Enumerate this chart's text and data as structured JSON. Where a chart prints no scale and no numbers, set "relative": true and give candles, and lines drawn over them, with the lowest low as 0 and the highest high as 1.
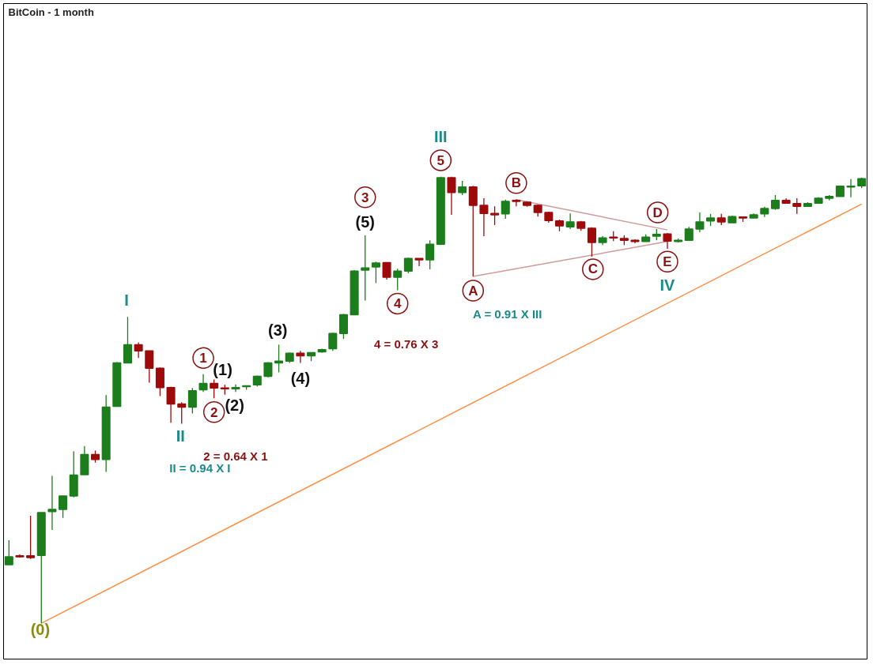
{
  "chart_data": {
    "type": "candlestick",
    "title": "BitCoin - 1 month",
    "relative": true,
    "tick_labels": false,
    "grid": false,
    "categories": [
      null,
      null,
      null,
      null,
      null,
      null,
      null,
      null,
      null,
      null,
      null,
      null,
      null,
      null,
      null,
      null,
      null,
      null,
      null,
      null,
      null,
      null,
      null,
      null,
      null,
      null,
      null,
      null,
      null,
      null,
      null,
      null,
      null,
      null,
      null,
      null,
      null,
      null,
      null,
      null,
      null,
      null,
      null,
      null,
      null,
      null,
      null,
      null,
      null,
      null,
      null,
      null,
      null,
      null,
      null,
      null,
      null,
      null,
      null,
      null,
      null,
      null,
      null,
      null,
      null,
      null,
      null,
      null,
      null,
      null,
      null,
      null,
      null,
      null,
      null,
      null,
      null,
      null,
      null,
      null
    ],
    "ohlc": [
      [
        0.131,
        0.186,
        0.131,
        0.149
      ],
      [
        0.151,
        0.154,
        0.147,
        0.149
      ],
      [
        0.151,
        0.241,
        0.144,
        0.147
      ],
      [
        0.152,
        0.248,
        0,
        0.248
      ],
      [
        0.25,
        0.33,
        0.209,
        0.255
      ],
      [
        0.255,
        0.285,
        0.236,
        0.285
      ],
      [
        0.285,
        0.385,
        0.282,
        0.332
      ],
      [
        0.333,
        0.397,
        0.333,
        0.378
      ],
      [
        0.378,
        0.387,
        0.36,
        0.367
      ],
      [
        0.367,
        0.511,
        0.339,
        0.484
      ],
      [
        0.486,
        0.585,
        0.486,
        0.583
      ],
      [
        0.583,
        0.686,
        0.583,
        0.624
      ],
      [
        0.624,
        0.629,
        0.594,
        0.61
      ],
      [
        0.61,
        0.61,
        0.539,
        0.571
      ],
      [
        0.571,
        0.573,
        0.509,
        0.528
      ],
      [
        0.528,
        0.53,
        0.449,
        0.491
      ],
      [
        0.491,
        0.495,
        0.447,
        0.484
      ],
      [
        0.484,
        0.527,
        0.47,
        0.521
      ],
      [
        0.523,
        0.558,
        0.518,
        0.537
      ],
      [
        0.537,
        0.546,
        0.504,
        0.527
      ],
      [
        0.527,
        0.534,
        0.512,
        0.525
      ],
      [
        0.525,
        0.535,
        0.518,
        0.528
      ],
      [
        0.53,
        0.532,
        0.523,
        0.532
      ],
      [
        0.534,
        0.555,
        0.53,
        0.553
      ],
      [
        0.553,
        0.585,
        0.551,
        0.583
      ],
      [
        0.583,
        0.624,
        0.562,
        0.587
      ],
      [
        0.587,
        0.606,
        0.583,
        0.605
      ],
      [
        0.605,
        0.61,
        0.583,
        0.599
      ],
      [
        0.599,
        0.606,
        0.587,
        0.606
      ],
      [
        0.608,
        0.615,
        0.606,
        0.613
      ],
      [
        0.615,
        0.651,
        0.61,
        0.649
      ],
      [
        0.649,
        0.693,
        0.637,
        0.691
      ],
      [
        0.691,
        0.791,
        0.691,
        0.789
      ],
      [
        0.791,
        0.869,
        0.723,
        0.796
      ],
      [
        0.798,
        0.81,
        0.762,
        0.807
      ],
      [
        0.808,
        0.808,
        0.77,
        0.775
      ],
      [
        0.775,
        0.794,
        0.746,
        0.789
      ],
      [
        0.789,
        0.819,
        0.784,
        0.817
      ],
      [
        0.817,
        0.817,
        0.8,
        0.814
      ],
      [
        0.814,
        0.858,
        0.793,
        0.849
      ],
      [
        0.849,
        1,
        0.847,
        0.998
      ],
      [
        0.998,
        1,
        0.915,
        0.965
      ],
      [
        0.965,
        0.991,
        0.959,
        0.977
      ],
      [
        0.977,
        0.98,
        0.777,
        0.936
      ],
      [
        0.936,
        0.952,
        0.867,
        0.918
      ],
      [
        0.918,
        0.934,
        0.892,
        0.915
      ],
      [
        0.917,
        0.949,
        0.906,
        0.945
      ],
      [
        0.947,
        0.95,
        0.934,
        0.945
      ],
      [
        0.943,
        0.945,
        0.933,
        0.936
      ],
      [
        0.936,
        0.938,
        0.911,
        0.92
      ],
      [
        0.92,
        0.922,
        0.897,
        0.902
      ],
      [
        0.901,
        0.904,
        0.878,
        0.89
      ],
      [
        0.888,
        0.918,
        0.883,
        0.899
      ],
      [
        0.899,
        0.901,
        0.879,
        0.885
      ],
      [
        0.885,
        0.887,
        0.821,
        0.853
      ],
      [
        0.853,
        0.867,
        0.847,
        0.863
      ],
      [
        0.865,
        0.878,
        0.856,
        0.863
      ],
      [
        0.862,
        0.869,
        0.847,
        0.858
      ],
      [
        0.858,
        0.86,
        0.851,
        0.855
      ],
      [
        0.855,
        0.871,
        0.855,
        0.865
      ],
      [
        0.867,
        0.883,
        0.858,
        0.871
      ],
      [
        0.872,
        0.874,
        0.839,
        0.856
      ],
      [
        0.855,
        0.862,
        0.853,
        0.858
      ],
      [
        0.858,
        0.888,
        0.858,
        0.883
      ],
      [
        0.883,
        0.92,
        0.876,
        0.899
      ],
      [
        0.901,
        0.917,
        0.89,
        0.908
      ],
      [
        0.908,
        0.917,
        0.892,
        0.899
      ],
      [
        0.897,
        0.913,
        0.897,
        0.911
      ],
      [
        0.91,
        0.911,
        0.899,
        0.908
      ],
      [
        0.908,
        0.918,
        0.908,
        0.915
      ],
      [
        0.917,
        0.933,
        0.91,
        0.929
      ],
      [
        0.929,
        0.959,
        0.926,
        0.947
      ],
      [
        0.947,
        0.952,
        0.941,
        0.941
      ],
      [
        0.94,
        0.952,
        0.917,
        0.934
      ],
      [
        0.934,
        0.943,
        0.934,
        0.94
      ],
      [
        0.941,
        0.954,
        0.941,
        0.952
      ],
      [
        0.952,
        0.959,
        0.947,
        0.956
      ],
      [
        0.956,
        0.98,
        0.956,
        0.979
      ],
      [
        0.977,
        0.995,
        0.954,
        0.979
      ],
      [
        0.98,
        0.998,
        0.975,
        0.996
      ]
    ],
    "colors": [
      "#1b7d1b",
      "#9e0a0a",
      "#9e0a0a",
      "#1b7d1b",
      "#1b7d1b",
      "#1b7d1b",
      "#1b7d1b",
      "#1b7d1b",
      "#9e0a0a",
      "#1b7d1b",
      "#1b7d1b",
      "#1b7d1b",
      "#9e0a0a",
      "#9e0a0a",
      "#9e0a0a",
      "#9e0a0a",
      "#9e0a0a",
      "#1b7d1b",
      "#1b7d1b",
      "#9e0a0a",
      "#9e0a0a",
      "#1b7d1b",
      "#1b7d1b",
      "#1b7d1b",
      "#1b7d1b",
      "#1b7d1b",
      "#1b7d1b",
      "#9e0a0a",
      "#1b7d1b",
      "#1b7d1b",
      "#1b7d1b",
      "#1b7d1b",
      "#1b7d1b",
      "#1b7d1b",
      "#1b7d1b",
      "#9e0a0a",
      "#1b7d1b",
      "#1b7d1b",
      "#9e0a0a",
      "#1b7d1b",
      "#1b7d1b",
      "#9e0a0a",
      "#1b7d1b",
      "#9e0a0a",
      "#9e0a0a",
      "#9e0a0a",
      "#1b7d1b",
      "#9e0a0a",
      "#9e0a0a",
      "#9e0a0a",
      "#9e0a0a",
      "#9e0a0a",
      "#1b7d1b",
      "#9e0a0a",
      "#9e0a0a",
      "#1b7d1b",
      "#9e0a0a",
      "#9e0a0a",
      "#9e0a0a",
      "#1b7d1b",
      "#1b7d1b",
      "#9e0a0a",
      "#1b7d1b",
      "#1b7d1b",
      "#1b7d1b",
      "#1b7d1b",
      "#9e0a0a",
      "#1b7d1b",
      "#9e0a0a",
      "#1b7d1b",
      "#1b7d1b",
      "#1b7d1b",
      "#9e0a0a",
      "#9e0a0a",
      "#1b7d1b",
      "#1b7d1b",
      "#1b7d1b",
      "#1b7d1b",
      "#1b7d1b",
      "#1b7d1b"
    ],
    "series": [
      {
        "type": "line",
        "color": "#ff8c42",
        "values": [
          null,
          null,
          null,
          0,
          null,
          null,
          null,
          null,
          null,
          null,
          null,
          null,
          null,
          null,
          null,
          null,
          null,
          null,
          null,
          null,
          null,
          null,
          null,
          null,
          null,
          null,
          null,
          null,
          null,
          null,
          null,
          null,
          null,
          null,
          null,
          null,
          null,
          null,
          null,
          null,
          null,
          null,
          null,
          null,
          null,
          null,
          null,
          null,
          null,
          null,
          null,
          null,
          null,
          null,
          null,
          null,
          null,
          null,
          null,
          null,
          null,
          null,
          null,
          null,
          null,
          null,
          null,
          null,
          null,
          null,
          null,
          null,
          null,
          null,
          null,
          null,
          null,
          null,
          null,
          0.939
        ]
      },
      {
        "type": "line",
        "color": "#d09a9a",
        "values": [
          null,
          null,
          null,
          null,
          null,
          null,
          null,
          null,
          null,
          null,
          null,
          null,
          null,
          null,
          null,
          null,
          null,
          null,
          null,
          null,
          null,
          null,
          null,
          null,
          null,
          null,
          null,
          null,
          null,
          null,
          null,
          null,
          null,
          null,
          null,
          null,
          null,
          null,
          null,
          null,
          null,
          null,
          null,
          null,
          null,
          null,
          null,
          0.949,
          null,
          null,
          null,
          null,
          null,
          null,
          null,
          null,
          null,
          null,
          null,
          null,
          null,
          0.881,
          null,
          null,
          null,
          null,
          null,
          null,
          null,
          null,
          null,
          null,
          null,
          null,
          null,
          null,
          null,
          null,
          null,
          null
        ]
      },
      {
        "type": "line",
        "color": "#d09a9a",
        "values": [
          null,
          null,
          null,
          null,
          null,
          null,
          null,
          null,
          null,
          null,
          null,
          null,
          null,
          null,
          null,
          null,
          null,
          null,
          null,
          null,
          null,
          null,
          null,
          null,
          null,
          null,
          null,
          null,
          null,
          null,
          null,
          null,
          null,
          null,
          null,
          null,
          null,
          null,
          null,
          null,
          null,
          null,
          null,
          0.777,
          null,
          null,
          null,
          null,
          null,
          null,
          null,
          null,
          null,
          null,
          null,
          null,
          null,
          null,
          null,
          null,
          null,
          0.855,
          null,
          null,
          null,
          null,
          null,
          null,
          null,
          null,
          null,
          null,
          null,
          null,
          null,
          null,
          null,
          null,
          null,
          null
        ]
      }
    ],
    "annotations": [
      "(0)",
      "I",
      "II",
      "II = 0.94 X I",
      "1",
      "(1)",
      "2",
      "(2)",
      "2 = 0.64 X 1",
      "(3)",
      "(4)",
      "3",
      "(5)",
      "4",
      "4 = 0.76 X 3",
      "III",
      "5",
      "A",
      "A = 0.91 X III",
      "B",
      "C",
      "D",
      "E",
      "IV"
    ]
  }
}
